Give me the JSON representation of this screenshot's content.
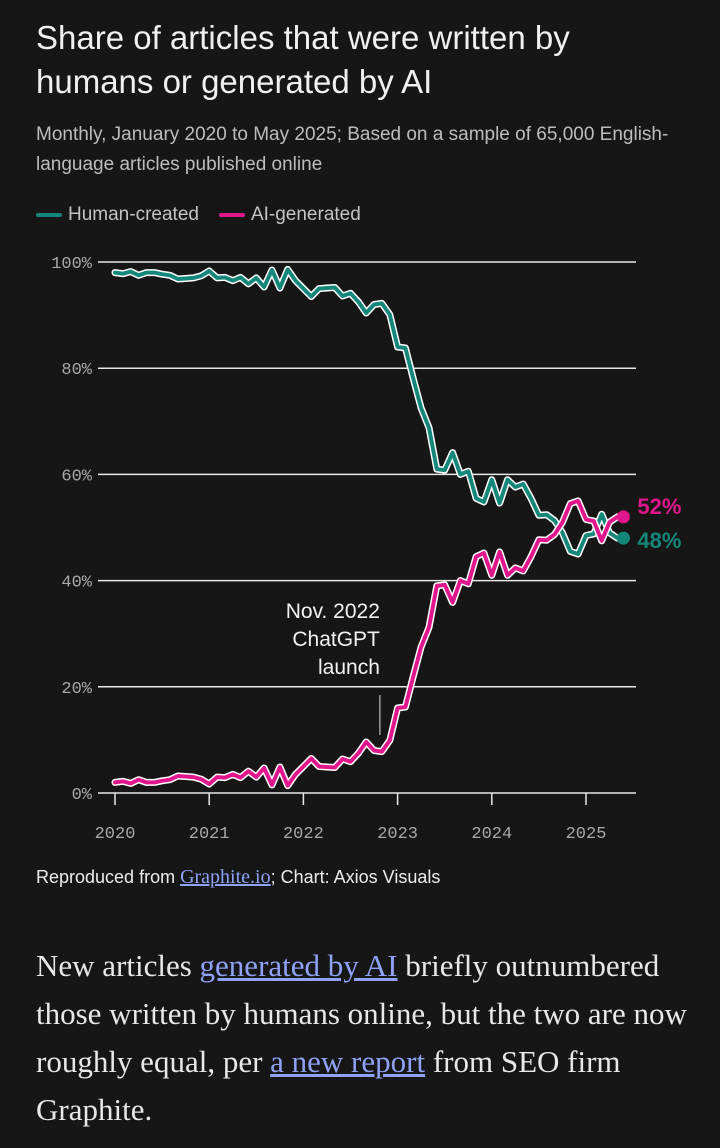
{
  "header": {
    "title": "Share of articles that were written by humans or generated by AI",
    "subtitle": "Monthly, January 2020 to May 2025; Based on a sample of 65,000 English-language articles published online"
  },
  "legend": {
    "human_label": "Human-created",
    "ai_label": "AI-generated"
  },
  "colors": {
    "human": "#15877a",
    "ai": "#e0168c",
    "background": "#161616",
    "gridline": "#e8e8e8",
    "link": "#8fa2f7"
  },
  "chart_data": {
    "type": "line",
    "title": "Share of articles that were written by humans or generated by AI",
    "xlabel": "",
    "ylabel": "",
    "ylim": [
      0,
      100
    ],
    "y_ticks": [
      "0%",
      "20%",
      "40%",
      "60%",
      "80%",
      "100%"
    ],
    "x_ticks": [
      "2020",
      "2021",
      "2022",
      "2023",
      "2024",
      "2025"
    ],
    "xlim": [
      "2020-01",
      "2025-05"
    ],
    "grid": true,
    "legend_position": "top-left",
    "x": [
      "2020-01",
      "2020-02",
      "2020-03",
      "2020-04",
      "2020-05",
      "2020-06",
      "2020-07",
      "2020-08",
      "2020-09",
      "2020-10",
      "2020-11",
      "2020-12",
      "2021-01",
      "2021-02",
      "2021-03",
      "2021-04",
      "2021-05",
      "2021-06",
      "2021-07",
      "2021-08",
      "2021-09",
      "2021-10",
      "2021-11",
      "2021-12",
      "2022-01",
      "2022-02",
      "2022-03",
      "2022-04",
      "2022-05",
      "2022-06",
      "2022-07",
      "2022-08",
      "2022-09",
      "2022-10",
      "2022-11",
      "2022-12",
      "2023-01",
      "2023-02",
      "2023-03",
      "2023-04",
      "2023-05",
      "2023-06",
      "2023-07",
      "2023-08",
      "2023-09",
      "2023-10",
      "2023-11",
      "2023-12",
      "2024-01",
      "2024-02",
      "2024-03",
      "2024-04",
      "2024-05",
      "2024-06",
      "2024-07",
      "2024-08",
      "2024-09",
      "2024-10",
      "2024-11",
      "2024-12",
      "2025-01",
      "2025-02",
      "2025-03",
      "2025-04",
      "2025-05"
    ],
    "series": [
      {
        "name": "Human-created",
        "values": [
          98,
          97.8,
          98.2,
          97.5,
          98,
          98,
          97.7,
          97.5,
          96.8,
          96.9,
          97,
          97.4,
          98.3,
          97,
          97.1,
          96.5,
          97.1,
          95.9,
          97,
          95.3,
          98.5,
          95.1,
          98.6,
          96.5,
          95,
          93.5,
          95,
          95.1,
          95.2,
          93.6,
          94.1,
          92.5,
          90.4,
          92,
          92.2,
          90.1,
          84,
          83.8,
          78,
          72.5,
          68.8,
          61,
          60.8,
          64.1,
          60,
          60.6,
          55.5,
          54.8,
          59,
          54.6,
          59,
          57.6,
          58.2,
          55.5,
          52.3,
          52.4,
          51.3,
          49,
          45.5,
          45,
          48.5,
          48.8,
          52.5,
          49,
          48
        ],
        "end_label": "48%"
      },
      {
        "name": "AI-generated",
        "values": [
          2,
          2.2,
          1.8,
          2.5,
          2,
          2,
          2.3,
          2.5,
          3.2,
          3.1,
          3,
          2.6,
          1.7,
          3,
          2.9,
          3.5,
          2.9,
          4.1,
          3,
          4.7,
          1.5,
          4.9,
          1.4,
          3.5,
          5,
          6.5,
          5,
          4.9,
          4.8,
          6.4,
          5.9,
          7.5,
          9.6,
          8,
          7.8,
          9.9,
          16,
          16.2,
          22,
          27.5,
          31.2,
          39,
          39.2,
          35.9,
          40,
          39.4,
          44.5,
          45.2,
          41,
          45.4,
          41,
          42.4,
          41.8,
          44.5,
          47.7,
          47.6,
          48.7,
          51,
          54.5,
          55,
          51.5,
          51.2,
          47.5,
          51,
          52
        ],
        "end_label": "52%"
      }
    ],
    "annotations": [
      {
        "x": "2022-11",
        "lines": [
          "Nov. 2022",
          "ChatGPT",
          "launch"
        ]
      }
    ]
  },
  "footer": {
    "source_prefix": "Reproduced from ",
    "source_link": "Graphite.io",
    "source_suffix": "; Chart: Axios Visuals"
  },
  "article": {
    "part1": "New articles ",
    "link1": "generated by AI",
    "part2": " briefly outnumbered those written by humans online, but the two are now roughly equal, per ",
    "link2": "a new report",
    "part3": " from SEO firm Graphite."
  }
}
